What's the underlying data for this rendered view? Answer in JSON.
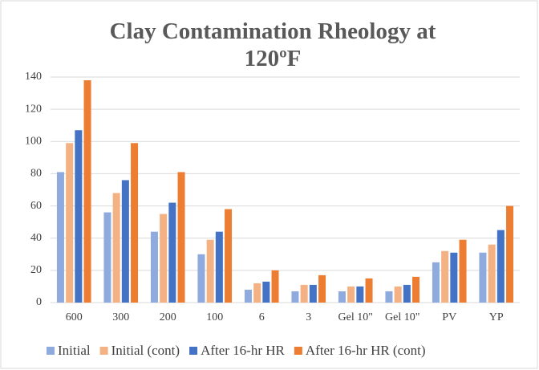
{
  "chart_data": {
    "type": "bar",
    "title": "Clay Contamination Rheology at 120ºF",
    "categories": [
      "600",
      "300",
      "200",
      "100",
      "6",
      "3",
      "Gel 10\"",
      "Gel 10\"",
      "PV",
      "YP"
    ],
    "series": [
      {
        "name": "Initial",
        "color": "#8faadc",
        "values": [
          81,
          56,
          44,
          30,
          8,
          7,
          7,
          7,
          25,
          31
        ]
      },
      {
        "name": "Initial (cont)",
        "color": "#f4b183",
        "values": [
          99,
          68,
          55,
          39,
          12,
          11,
          10,
          10,
          32,
          36
        ]
      },
      {
        "name": "After 16-hr HR",
        "color": "#4472c4",
        "values": [
          107,
          76,
          62,
          44,
          13,
          11,
          10,
          11,
          31,
          45
        ]
      },
      {
        "name": "After 16-hr HR (cont)",
        "color": "#ed7d31",
        "values": [
          138,
          99,
          81,
          58,
          20,
          17,
          15,
          16,
          39,
          60
        ]
      }
    ],
    "ylim": [
      0,
      140
    ],
    "yticks": [
      0,
      20,
      40,
      60,
      80,
      100,
      120,
      140
    ],
    "grid": true,
    "legend": "bottom"
  }
}
